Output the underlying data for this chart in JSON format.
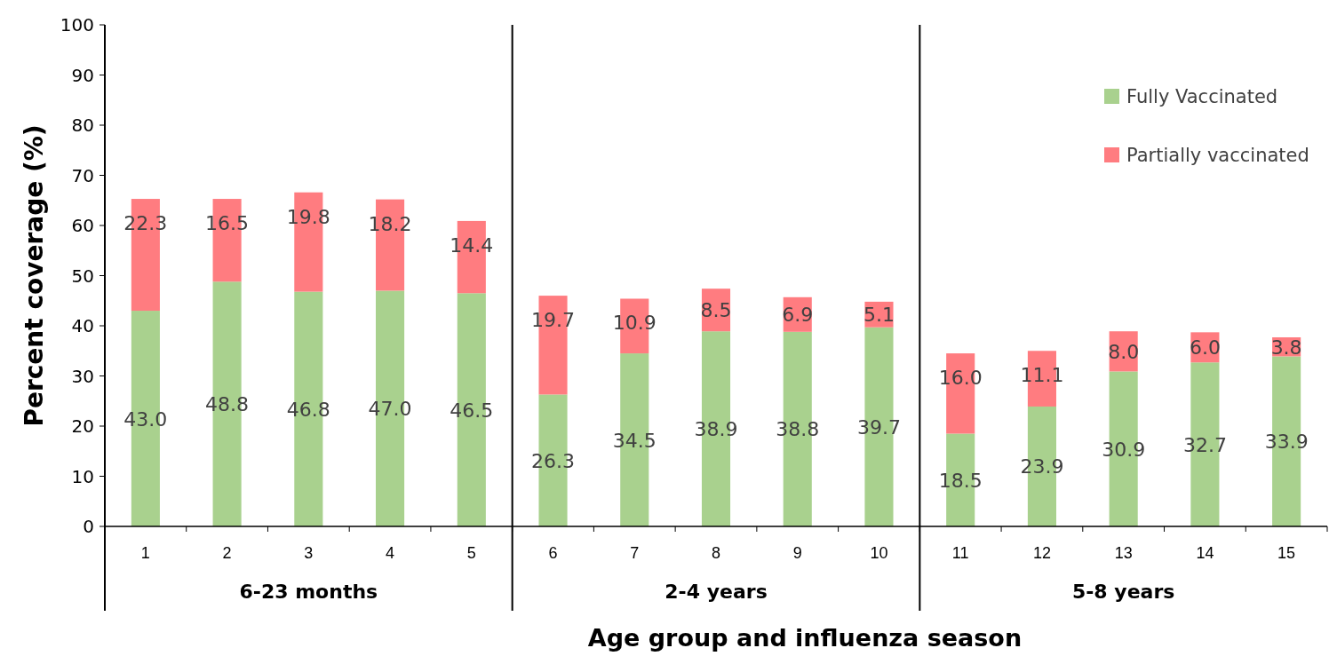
{
  "chart_data": {
    "type": "bar",
    "stacked": true,
    "xlabel": "Age group and influenza season",
    "ylabel": "Percent coverage (%)",
    "categories": [
      "1",
      "2",
      "3",
      "4",
      "5",
      "6",
      "7",
      "8",
      "9",
      "10",
      "11",
      "12",
      "13",
      "14",
      "15"
    ],
    "series": [
      {
        "name": "Fully Vaccinated",
        "color": "#a9d18e",
        "values": [
          43.0,
          48.8,
          46.8,
          47.0,
          46.5,
          26.3,
          34.5,
          38.9,
          38.8,
          39.7,
          18.5,
          23.9,
          30.9,
          32.7,
          33.9
        ],
        "value_labels": [
          "43.0",
          "48.8",
          "46.8",
          "47.0",
          "46.5",
          "26.3",
          "34.5",
          "38.9",
          "38.8",
          "39.7",
          "18.5",
          "23.9",
          "30.9",
          "32.7",
          "33.9"
        ]
      },
      {
        "name": "Partially vaccinated",
        "color": "#ff7c80",
        "values": [
          22.3,
          16.5,
          19.8,
          18.2,
          14.4,
          19.7,
          10.9,
          8.5,
          6.9,
          5.1,
          16.0,
          11.1,
          8.0,
          6.0,
          3.8
        ],
        "value_labels": [
          "22.3",
          "16.5",
          "19.8",
          "18.2",
          "14.4",
          "19.7",
          "10.9",
          "8.5",
          "6.9",
          "5.1",
          "16.0",
          "11.1",
          "8.0",
          "6.0",
          "3.8"
        ]
      }
    ],
    "annotations": [
      "6-23 months",
      "2-4 years",
      "5-8 years"
    ],
    "ylim": [
      0,
      100
    ],
    "yticks": [
      0,
      10,
      20,
      30,
      40,
      50,
      60,
      70,
      80,
      90,
      100
    ],
    "legend": "top right"
  }
}
